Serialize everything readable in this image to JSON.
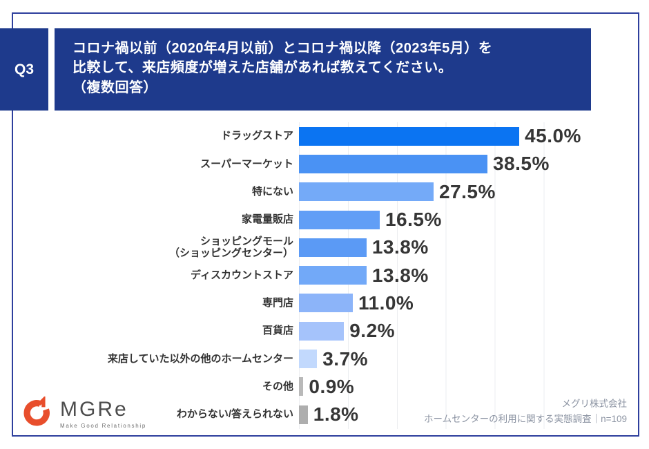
{
  "header": {
    "question_number": "Q3",
    "question_lines": [
      "コロナ禍以前（2020年4月以前）とコロナ禍以降（2023年5月）を",
      "比較して、来店頻度が増えた店舗があれば教えてください。",
      "（複数回答）"
    ]
  },
  "chart_data": {
    "type": "bar",
    "orientation": "horizontal",
    "unit": "%",
    "xlim": [
      0,
      56
    ],
    "grid": true,
    "gridline_interval_percent": 10,
    "categories": [
      "ドラッグストア",
      "スーパーマーケット",
      "特にない",
      "家電量販店",
      "ショッピングモール（ショッピングセンター）",
      "ディスカウントストア",
      "専門店",
      "百貨店",
      "来店していた以外の他のホームセンター",
      "その他",
      "わからない/答えられない"
    ],
    "category_label_lines": [
      [
        "ドラッグストア"
      ],
      [
        "スーパーマーケット"
      ],
      [
        "特にない"
      ],
      [
        "家電量販店"
      ],
      [
        "ショッピングモール",
        "（ショッピングセンター）"
      ],
      [
        "ディスカウントストア"
      ],
      [
        "専門店"
      ],
      [
        "百貨店"
      ],
      [
        "来店していた以外の他のホームセンター"
      ],
      [
        "その他"
      ],
      [
        "わからない/答えられない"
      ]
    ],
    "values": [
      45.0,
      38.5,
      27.5,
      16.5,
      13.8,
      13.8,
      11.0,
      9.2,
      3.7,
      0.9,
      1.8
    ],
    "value_labels": [
      "45.0%",
      "38.5%",
      "27.5%",
      "16.5%",
      "13.8%",
      "13.8%",
      "11.0%",
      "9.2%",
      "3.7%",
      "0.9%",
      "1.8%"
    ],
    "bar_colors": [
      "#0b74f2",
      "#4a92f4",
      "#74aaf8",
      "#619ef6",
      "#5b9af5",
      "#72a9f8",
      "#8cb4f9",
      "#a5c3fb",
      "#c2d9fd",
      "#b9b9b9",
      "#aeaeae"
    ]
  },
  "footer": {
    "logo_name": "MGRe",
    "logo_tagline": "Make Good Relationship",
    "source_line1": "メグリ株式会社",
    "source_line2": "ホームセンターの利用に関する実態調査｜n=109"
  },
  "colors": {
    "header_bg": "#1e3a8c",
    "frame_border": "#2e3f9d",
    "value_text": "#363636",
    "category_text": "#333333",
    "source_text": "#8b93a2",
    "logo_orange": "#e84e2c",
    "gridline": "#ebedf0"
  }
}
